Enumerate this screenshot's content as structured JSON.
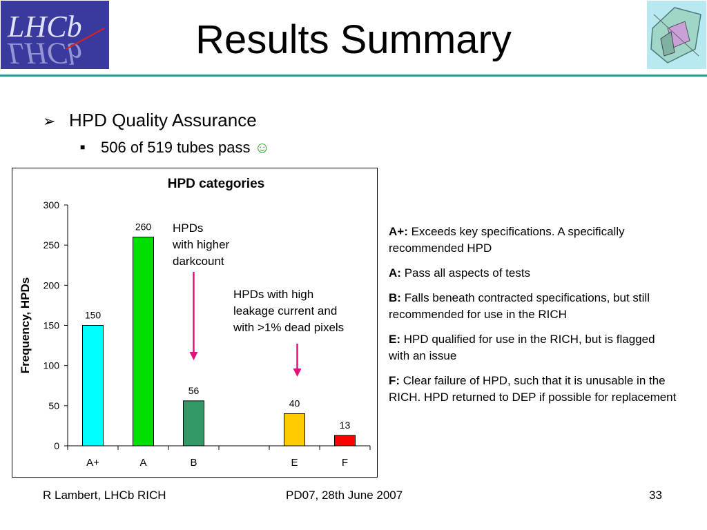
{
  "slide": {
    "title": "Results Summary",
    "bullet_level1": "HPD Quality Assurance",
    "bullet_level2": "506 of 519 tubes pass",
    "smiley": "☺"
  },
  "logos": {
    "left": {
      "text": "LHCb",
      "bg": "#3a3a9e"
    },
    "right": {
      "icon": "detector-diagram-icon",
      "bg": "#b8e8f0"
    }
  },
  "chart_data": {
    "type": "bar",
    "title": "HPD categories",
    "ylabel": "Frequency, HPDs",
    "xlabel": "",
    "ylim": [
      0,
      300
    ],
    "yticks": [
      0,
      50,
      100,
      150,
      200,
      250,
      300
    ],
    "categories": [
      "A+",
      "A",
      "B",
      "",
      "E",
      "F"
    ],
    "values": [
      150,
      260,
      56,
      null,
      40,
      13
    ],
    "data_labels": [
      "150",
      "260",
      "56",
      "",
      "40",
      "13"
    ],
    "colors": [
      "#00ffff",
      "#00e000",
      "#339966",
      "#ffffff",
      "#ffcc00",
      "#ff0000"
    ],
    "annotations": [
      {
        "text_lines": [
          "HPDs",
          "with higher",
          "darkcount"
        ],
        "points_to": "B"
      },
      {
        "text_lines": [
          "HPDs with high",
          "leakage current and",
          "with >1% dead pixels"
        ],
        "points_to": "E"
      }
    ],
    "arrow_color": "#e0127a",
    "grid": false,
    "legend": "none"
  },
  "legend_text": [
    {
      "key": "A+:",
      "desc": "Exceeds key specifications. A specifically recommended HPD"
    },
    {
      "key": "A:",
      "desc": "Pass all aspects of tests"
    },
    {
      "key": "B:",
      "desc": "Falls beneath contracted specifications, but still recommended for use in the RICH"
    },
    {
      "key": "E:",
      "desc": "HPD qualified for use in the RICH, but is flagged with an issue"
    },
    {
      "key": "F:",
      "desc": "Clear failure of HPD, such that it is unusable in the RICH. HPD returned to DEP if possible for replacement"
    }
  ],
  "footer": {
    "author": "R Lambert, LHCb RICH",
    "event": "PD07, 28th June 2007",
    "page": "33"
  },
  "colors": {
    "rule": "#2e9a8e"
  }
}
